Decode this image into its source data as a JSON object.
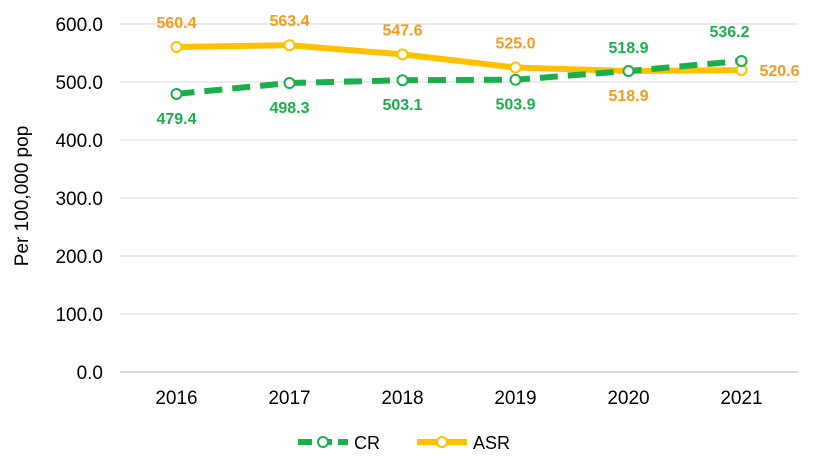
{
  "chart_data": {
    "type": "line",
    "x": [
      "2016",
      "2017",
      "2018",
      "2019",
      "2020",
      "2021"
    ],
    "ylabel": "Per 100,000 pop",
    "ylim": [
      0,
      600
    ],
    "yticks": [
      "0.0",
      "100.0",
      "200.0",
      "300.0",
      "400.0",
      "500.0",
      "600.0"
    ],
    "grid": "horizontal",
    "legend_position": "bottom",
    "series": [
      {
        "name": "CR",
        "values": [
          479.4,
          498.3,
          503.1,
          503.9,
          518.9,
          536.2
        ],
        "labels": [
          "479.4",
          "498.3",
          "503.1",
          "503.9",
          "518.9",
          "536.2"
        ],
        "color": "#1aaf4b",
        "style": "dashed"
      },
      {
        "name": "ASR",
        "values": [
          560.4,
          563.4,
          547.6,
          525.0,
          518.9,
          520.6
        ],
        "labels": [
          "560.4",
          "563.4",
          "547.6",
          "525.0",
          "518.9",
          "520.6"
        ],
        "color": "#ffc000",
        "label_color": "#f79a1e",
        "style": "solid"
      }
    ]
  }
}
